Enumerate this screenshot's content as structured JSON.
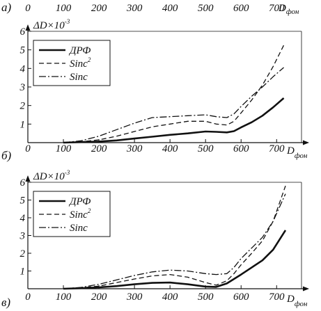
{
  "top_row": {
    "panel_label": "а)",
    "tick_labels": [
      "0",
      "100",
      "200",
      "300",
      "400",
      "500",
      "600",
      "700"
    ],
    "xlabel_main": "D",
    "xlabel_sub": "фон"
  },
  "chart_data": [
    {
      "type": "line",
      "panel_label": "б)",
      "ylabel_main": "ΔD×10",
      "ylabel_sup": "-3",
      "xlabel_main": "D",
      "xlabel_sub": "фон",
      "xlim": [
        0,
        770
      ],
      "ylim": [
        0,
        6
      ],
      "x_ticks": [
        0,
        100,
        200,
        300,
        400,
        500,
        600,
        700
      ],
      "y_ticks": [
        1,
        2,
        3,
        4,
        5,
        6
      ],
      "grid": false,
      "legend_position": "top-left",
      "series": [
        {
          "name": "ДРФ",
          "style": "solid",
          "x": [
            100,
            150,
            200,
            250,
            300,
            350,
            400,
            450,
            500,
            530,
            560,
            580,
            600,
            630,
            660,
            690,
            720
          ],
          "y": [
            0.0,
            0.03,
            0.06,
            0.12,
            0.22,
            0.32,
            0.42,
            0.5,
            0.6,
            0.58,
            0.55,
            0.62,
            0.82,
            1.1,
            1.45,
            1.9,
            2.4
          ]
        },
        {
          "name": "Sinc",
          "name_sup": "2",
          "style": "dashed",
          "x": [
            100,
            150,
            200,
            250,
            300,
            350,
            400,
            450,
            500,
            530,
            560,
            580,
            600,
            630,
            660,
            690,
            720
          ],
          "y": [
            0.0,
            0.05,
            0.15,
            0.35,
            0.6,
            0.85,
            1.0,
            1.15,
            1.15,
            1.0,
            0.95,
            1.15,
            1.6,
            2.3,
            3.1,
            4.1,
            5.25
          ]
        },
        {
          "name": "Sinc",
          "style": "dash-dot",
          "x": [
            100,
            150,
            200,
            250,
            300,
            350,
            400,
            450,
            500,
            530,
            560,
            580,
            600,
            630,
            660,
            690,
            720
          ],
          "y": [
            0.0,
            0.1,
            0.35,
            0.7,
            1.05,
            1.35,
            1.4,
            1.45,
            1.5,
            1.4,
            1.35,
            1.55,
            1.95,
            2.5,
            3.0,
            3.55,
            4.05
          ]
        }
      ]
    },
    {
      "type": "line",
      "panel_label": "в)",
      "ylabel_main": "ΔD×10",
      "ylabel_sup": "-3",
      "xlabel_main": "D",
      "xlabel_sub": "фон",
      "xlim": [
        0,
        770
      ],
      "ylim": [
        0,
        6
      ],
      "x_ticks": [
        0,
        100,
        200,
        300,
        400,
        500,
        600,
        700
      ],
      "y_ticks": [
        1,
        2,
        3,
        4,
        5,
        6
      ],
      "grid": false,
      "legend_position": "top-left",
      "series": [
        {
          "name": "ДРФ",
          "style": "solid",
          "x": [
            100,
            150,
            200,
            250,
            300,
            350,
            400,
            450,
            500,
            530,
            560,
            580,
            600,
            630,
            660,
            690,
            725
          ],
          "y": [
            0.0,
            0.03,
            0.08,
            0.15,
            0.25,
            0.33,
            0.35,
            0.25,
            0.12,
            0.1,
            0.3,
            0.55,
            0.8,
            1.2,
            1.6,
            2.2,
            3.3
          ]
        },
        {
          "name": "Sinc",
          "name_sup": "2",
          "style": "dashed",
          "x": [
            100,
            150,
            200,
            250,
            300,
            350,
            400,
            450,
            500,
            530,
            560,
            580,
            600,
            630,
            660,
            690,
            725
          ],
          "y": [
            0.0,
            0.05,
            0.15,
            0.35,
            0.55,
            0.72,
            0.8,
            0.65,
            0.35,
            0.2,
            0.45,
            0.85,
            1.35,
            2.0,
            2.7,
            3.8,
            5.8
          ]
        },
        {
          "name": "Sinc",
          "style": "dash-dot",
          "x": [
            100,
            150,
            200,
            250,
            300,
            350,
            400,
            450,
            500,
            530,
            560,
            580,
            600,
            630,
            660,
            690,
            725
          ],
          "y": [
            0.0,
            0.08,
            0.25,
            0.5,
            0.75,
            0.95,
            1.05,
            1.0,
            0.85,
            0.8,
            0.85,
            1.2,
            1.7,
            2.3,
            2.9,
            3.8,
            5.35
          ]
        }
      ]
    }
  ]
}
